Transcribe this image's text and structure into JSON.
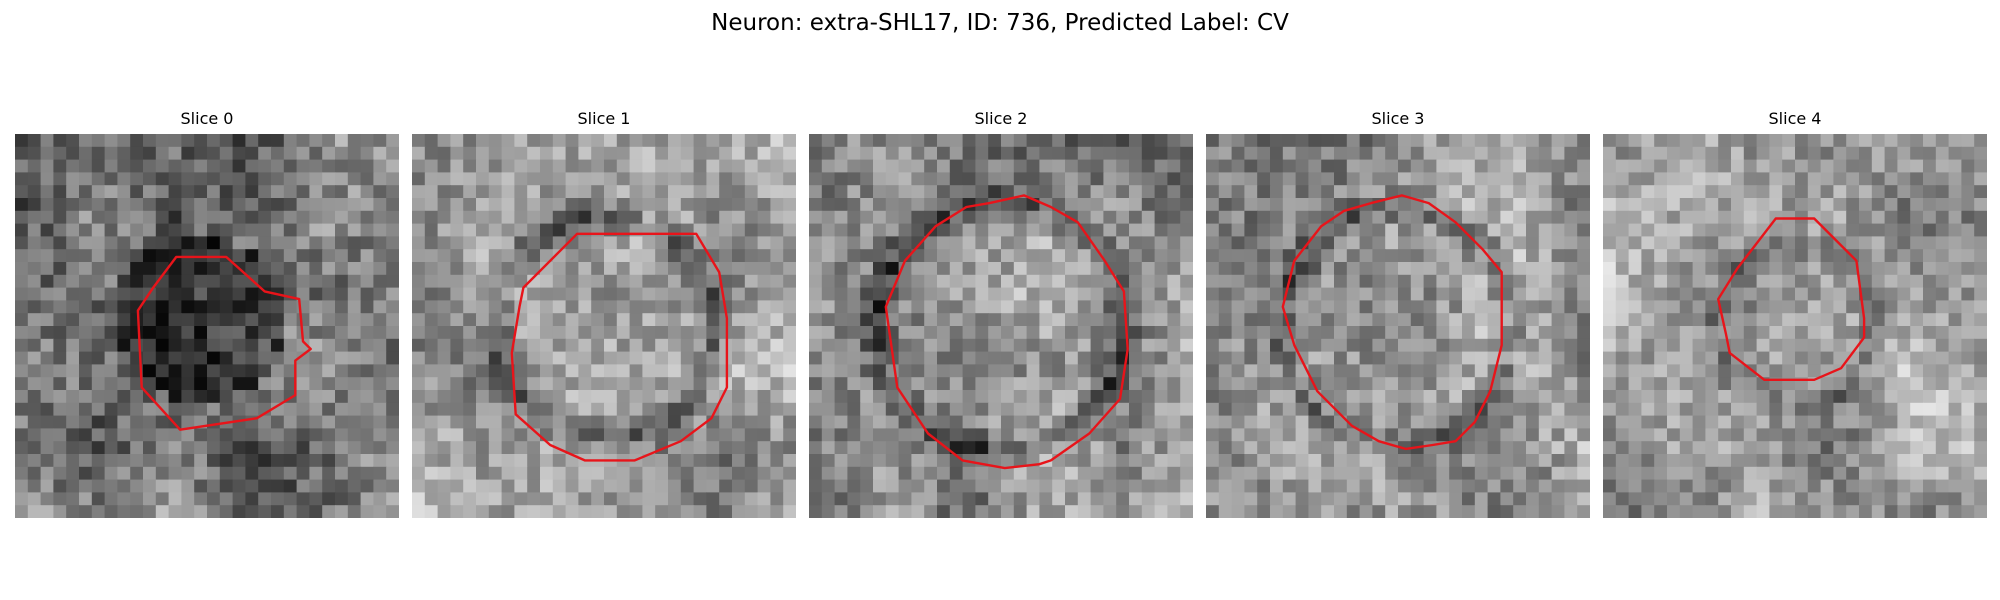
{
  "figure": {
    "title": "Neuron: extra-SHL17, ID: 736, Predicted Label: CV"
  },
  "panels": [
    {
      "title": "Slice 0",
      "brightness": 0.48,
      "contrast": 0.85,
      "blob": {
        "c": 0.48,
        "r": 0.22,
        "inner": -0.55,
        "ring": 0.0
      },
      "seed": 11,
      "contour": [
        [
          0.42,
          0.32
        ],
        [
          0.55,
          0.32
        ],
        [
          0.65,
          0.41
        ],
        [
          0.74,
          0.43
        ],
        [
          0.75,
          0.54
        ],
        [
          0.77,
          0.56
        ],
        [
          0.73,
          0.59
        ],
        [
          0.73,
          0.68
        ],
        [
          0.63,
          0.74
        ],
        [
          0.43,
          0.77
        ],
        [
          0.33,
          0.66
        ],
        [
          0.32,
          0.46
        ],
        [
          0.36,
          0.4
        ]
      ]
    },
    {
      "title": "Slice 1",
      "brightness": 0.62,
      "contrast": 0.75,
      "blob": {
        "c": 0.5,
        "r": 0.28,
        "inner": 0.12,
        "ring": -0.55
      },
      "seed": 23,
      "contour": [
        [
          0.43,
          0.26
        ],
        [
          0.74,
          0.26
        ],
        [
          0.8,
          0.36
        ],
        [
          0.82,
          0.48
        ],
        [
          0.82,
          0.66
        ],
        [
          0.78,
          0.74
        ],
        [
          0.7,
          0.8
        ],
        [
          0.58,
          0.85
        ],
        [
          0.45,
          0.85
        ],
        [
          0.36,
          0.81
        ],
        [
          0.27,
          0.73
        ],
        [
          0.26,
          0.57
        ],
        [
          0.28,
          0.45
        ],
        [
          0.29,
          0.4
        ]
      ]
    },
    {
      "title": "Slice 2",
      "brightness": 0.55,
      "contrast": 0.8,
      "blob": {
        "c": 0.5,
        "r": 0.32,
        "inner": 0.15,
        "ring": -0.5
      },
      "seed": 37,
      "contour": [
        [
          0.47,
          0.18
        ],
        [
          0.56,
          0.16
        ],
        [
          0.63,
          0.19
        ],
        [
          0.7,
          0.23
        ],
        [
          0.77,
          0.33
        ],
        [
          0.82,
          0.41
        ],
        [
          0.83,
          0.56
        ],
        [
          0.81,
          0.69
        ],
        [
          0.73,
          0.78
        ],
        [
          0.63,
          0.85
        ],
        [
          0.6,
          0.86
        ],
        [
          0.51,
          0.87
        ],
        [
          0.4,
          0.85
        ],
        [
          0.31,
          0.78
        ],
        [
          0.23,
          0.66
        ],
        [
          0.2,
          0.45
        ],
        [
          0.25,
          0.33
        ],
        [
          0.33,
          0.24
        ],
        [
          0.41,
          0.19
        ]
      ]
    },
    {
      "title": "Slice 3",
      "brightness": 0.6,
      "contrast": 0.8,
      "blob": {
        "c": 0.5,
        "r": 0.3,
        "inner": 0.12,
        "ring": -0.5
      },
      "seed": 53,
      "contour": [
        [
          0.43,
          0.18
        ],
        [
          0.51,
          0.16
        ],
        [
          0.58,
          0.18
        ],
        [
          0.65,
          0.23
        ],
        [
          0.72,
          0.3
        ],
        [
          0.77,
          0.36
        ],
        [
          0.77,
          0.55
        ],
        [
          0.74,
          0.67
        ],
        [
          0.7,
          0.75
        ],
        [
          0.65,
          0.8
        ],
        [
          0.59,
          0.81
        ],
        [
          0.52,
          0.82
        ],
        [
          0.45,
          0.8
        ],
        [
          0.38,
          0.76
        ],
        [
          0.29,
          0.67
        ],
        [
          0.23,
          0.55
        ],
        [
          0.2,
          0.45
        ],
        [
          0.23,
          0.33
        ],
        [
          0.3,
          0.24
        ],
        [
          0.36,
          0.2
        ]
      ]
    },
    {
      "title": "Slice 4",
      "brightness": 0.6,
      "contrast": 0.75,
      "blob": {
        "c": 0.5,
        "r": 0.2,
        "inner": 0.05,
        "ring": -0.35
      },
      "seed": 71,
      "contour": [
        [
          0.45,
          0.22
        ],
        [
          0.55,
          0.22
        ],
        [
          0.66,
          0.33
        ],
        [
          0.68,
          0.48
        ],
        [
          0.68,
          0.53
        ],
        [
          0.62,
          0.61
        ],
        [
          0.55,
          0.64
        ],
        [
          0.42,
          0.64
        ],
        [
          0.33,
          0.57
        ],
        [
          0.32,
          0.52
        ],
        [
          0.3,
          0.43
        ],
        [
          0.35,
          0.35
        ]
      ]
    }
  ],
  "colors": {
    "contour": "#e8141a",
    "background": "#ffffff"
  },
  "image_grid": 30
}
